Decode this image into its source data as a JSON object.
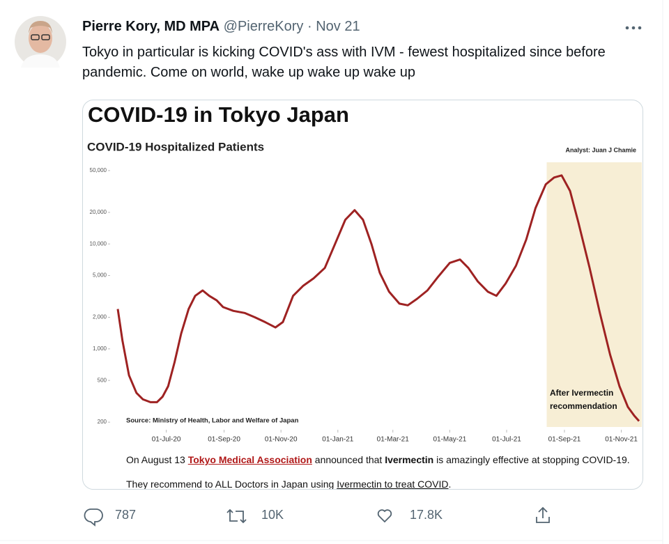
{
  "tweet": {
    "author_name": "Pierre Kory, MD MPA",
    "handle": "@PierreKory",
    "separator": "·",
    "date": "Nov 21",
    "text": "Tokyo in particular is kicking COVID's ass with IVM - fewest hospitalized since before pandemic. Come on world, wake up wake up wake up",
    "replies": "787",
    "retweets": "10K",
    "likes": "17.8K"
  },
  "image": {
    "caption_line_1": [
      "On August 13 ",
      "Tokyo Medical Association",
      " announced that ",
      "Ivermectin",
      " is amazingly effective at stopping COVID-19."
    ],
    "caption_line_2": [
      "They recommend to ALL Doctors in Japan using ",
      "Ivermectin to treat COVID",
      "."
    ]
  },
  "chart_data": {
    "type": "line",
    "title": "COVID-19 in Tokyo Japan",
    "subtitle": "COVID-19 Hospitalized Patients",
    "analyst_note": "Analyst: Juan J Chamie",
    "source": "Source: Ministry of Health, Labor and Welfare of Japan",
    "log_scale": true,
    "color": "#9e2222",
    "x": [
      "2020-05-10",
      "2020-05-15",
      "2020-05-22",
      "2020-05-30",
      "2020-06-06",
      "2020-06-14",
      "2020-06-21",
      "2020-06-27",
      "2020-07-03",
      "2020-07-10",
      "2020-07-17",
      "2020-07-25",
      "2020-08-01",
      "2020-08-09",
      "2020-08-16",
      "2020-08-24",
      "2020-08-31",
      "2020-09-11",
      "2020-09-23",
      "2020-10-04",
      "2020-10-15",
      "2020-10-26",
      "2020-11-03",
      "2020-11-14",
      "2020-11-25",
      "2020-12-06",
      "2020-12-18",
      "2020-12-29",
      "2021-01-09",
      "2021-01-19",
      "2021-01-28",
      "2021-02-06",
      "2021-02-15",
      "2021-02-25",
      "2021-03-08",
      "2021-03-17",
      "2021-03-27",
      "2021-04-07",
      "2021-04-18",
      "2021-05-01",
      "2021-05-12",
      "2021-05-21",
      "2021-05-31",
      "2021-06-11",
      "2021-06-20",
      "2021-06-30",
      "2021-07-11",
      "2021-07-22",
      "2021-08-01",
      "2021-08-12",
      "2021-08-21",
      "2021-08-29",
      "2021-09-07",
      "2021-09-16",
      "2021-09-28",
      "2021-10-09",
      "2021-10-20",
      "2021-10-30",
      "2021-11-08",
      "2021-11-15",
      "2021-11-20"
    ],
    "values": [
      2400,
      1200,
      560,
      380,
      330,
      310,
      310,
      350,
      440,
      750,
      1400,
      2400,
      3200,
      3600,
      3200,
      2900,
      2500,
      2300,
      2200,
      2000,
      1800,
      1600,
      1800,
      3200,
      4000,
      4700,
      5900,
      10000,
      17000,
      21000,
      17000,
      10000,
      5300,
      3500,
      2700,
      2600,
      3000,
      3600,
      4800,
      6600,
      7100,
      5900,
      4400,
      3500,
      3200,
      4200,
      6200,
      11000,
      22000,
      37000,
      43000,
      45000,
      32000,
      16000,
      5900,
      2200,
      880,
      440,
      280,
      230,
      205
    ],
    "xlim": [
      "2020-05-04",
      "2021-11-23"
    ],
    "xticks": [
      {
        "value": "2020-07-01",
        "label": "01-Jul-20"
      },
      {
        "value": "2020-09-01",
        "label": "01-Sep-20"
      },
      {
        "value": "2020-11-01",
        "label": "01-Nov-20"
      },
      {
        "value": "2021-01-01",
        "label": "01-Jan-21"
      },
      {
        "value": "2021-03-01",
        "label": "01-Mar-21"
      },
      {
        "value": "2021-05-01",
        "label": "01-May-21"
      },
      {
        "value": "2021-07-01",
        "label": "01-Jul-21"
      },
      {
        "value": "2021-09-01",
        "label": "01-Sep-21"
      },
      {
        "value": "2021-11-01",
        "label": "01-Nov-21"
      }
    ],
    "ylim": [
      180,
      60000
    ],
    "yticks": [
      200,
      500,
      {
        "value": 1000,
        "label": "1,000"
      },
      {
        "value": 2000,
        "label": "2,000"
      },
      {
        "value": 5000,
        "label": "5,000"
      },
      {
        "value": 10000,
        "label": "10,000"
      },
      {
        "value": 20000,
        "label": "20,000"
      },
      {
        "value": 50000,
        "label": "50,000"
      }
    ],
    "highlight": {
      "from": "2021-08-13",
      "to": "2021-11-23",
      "label": "After Ivermectin recommendation",
      "color": "#f7eed5"
    }
  }
}
